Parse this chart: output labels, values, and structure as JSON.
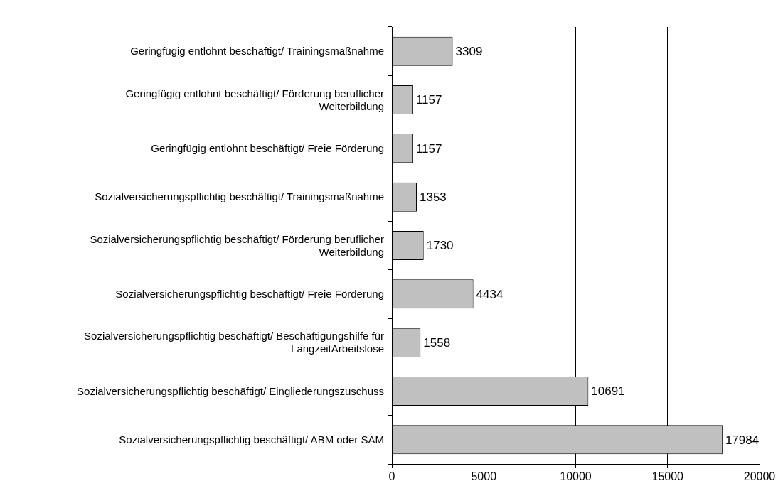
{
  "chart_data": {
    "type": "bar",
    "orientation": "horizontal",
    "categories": [
      "Geringfügig entlohnt beschäftigt/ Trainingsmaßnahme",
      "Geringfügig entlohnt beschäftigt/ Förderung beruflicher Weiterbildung",
      "Geringfügig entlohnt beschäftigt/ Freie Förderung",
      "Sozialversicherungspflichtig beschäftigt/ Trainingsmaßnahme",
      "Sozialversicherungspflichtig beschäftigt/ Förderung beruflicher Weiterbildung",
      "Sozialversicherungspflichtig beschäftigt/ Freie Förderung",
      "Sozialversicherungspflichtig beschäftigt/ Beschäftigungshilfe für LangzeitArbeitslose",
      "Sozialversicherungspflichtig beschäftigt/ Eingliederungszuschuss",
      "Sozialversicherungspflichtig beschäftigt/ ABM oder SAM"
    ],
    "values": [
      3309,
      1157,
      1157,
      1353,
      1730,
      4434,
      1558,
      10691,
      17984
    ],
    "color": "#c0c0c0",
    "xlim": [
      0,
      20000
    ],
    "xticks": [
      0,
      5000,
      10000,
      15000,
      20000
    ],
    "grid": "x",
    "data_labels": true,
    "legend": false
  }
}
